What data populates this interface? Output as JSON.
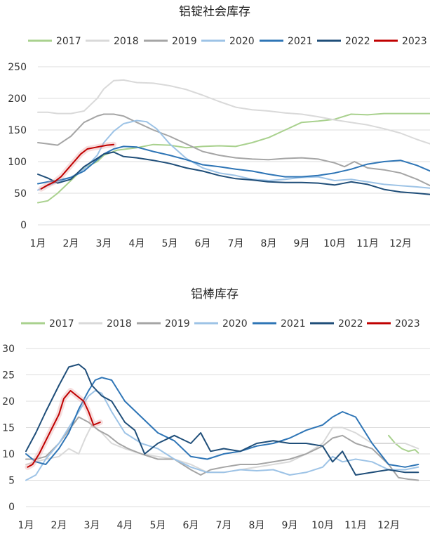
{
  "chart_data": [
    {
      "type": "line",
      "title": "铝锭社会库存",
      "x_tick_labels": [
        "1月",
        "2月",
        "3月",
        "4月",
        "5月",
        "6月",
        "7月",
        "8月",
        "9月",
        "10月",
        "11月",
        "12月"
      ],
      "y_ticks": [
        0,
        50,
        100,
        150,
        200,
        250
      ],
      "ylim": [
        0,
        250
      ],
      "legend_position": "top",
      "grid": true,
      "series": [
        {
          "name": "2017",
          "color": "#a9d18e",
          "x": [
            1.0,
            1.3,
            1.6,
            2.0,
            2.4,
            2.8,
            3.0,
            3.4,
            4.0,
            4.5,
            5.0,
            5.5,
            6.0,
            6.5,
            7.0,
            7.5,
            8.0,
            8.5,
            9.0,
            9.5,
            10.0,
            10.5,
            11.0,
            11.5,
            12.0,
            12.5,
            12.9
          ],
          "y": [
            35,
            38,
            50,
            70,
            90,
            100,
            110,
            118,
            122,
            127,
            126,
            122,
            124,
            125,
            124,
            130,
            138,
            150,
            162,
            164,
            167,
            175,
            174,
            176,
            176,
            176,
            176
          ]
        },
        {
          "name": "2018",
          "color": "#d9d9d9",
          "x": [
            1.0,
            1.3,
            1.6,
            2.0,
            2.4,
            2.8,
            3.0,
            3.3,
            3.6,
            4.0,
            4.5,
            5.0,
            5.5,
            6.0,
            6.5,
            7.0,
            7.5,
            8.0,
            8.5,
            9.0,
            9.5,
            10.0,
            10.5,
            11.0,
            11.5,
            12.0,
            12.5,
            12.9
          ],
          "y": [
            178,
            178,
            176,
            176,
            180,
            200,
            215,
            228,
            229,
            225,
            224,
            220,
            214,
            205,
            195,
            186,
            182,
            180,
            177,
            175,
            171,
            166,
            162,
            158,
            152,
            145,
            135,
            128
          ]
        },
        {
          "name": "2019",
          "color": "#a5a5a5",
          "x": [
            1.0,
            1.3,
            1.6,
            2.0,
            2.4,
            2.8,
            3.0,
            3.3,
            3.6,
            4.0,
            4.5,
            5.0,
            5.5,
            6.0,
            6.5,
            7.0,
            7.5,
            8.0,
            8.5,
            9.0,
            9.5,
            10.0,
            10.3,
            10.6,
            11.0,
            11.5,
            12.0,
            12.5,
            12.9
          ],
          "y": [
            130,
            128,
            126,
            140,
            162,
            172,
            175,
            175,
            172,
            162,
            150,
            140,
            128,
            116,
            110,
            106,
            104,
            103,
            105,
            106,
            104,
            98,
            92,
            100,
            90,
            87,
            82,
            72,
            62
          ]
        },
        {
          "name": "2020",
          "color": "#9dc3e6",
          "x": [
            1.0,
            1.3,
            1.6,
            2.0,
            2.4,
            2.8,
            3.0,
            3.3,
            3.6,
            4.0,
            4.3,
            4.6,
            5.0,
            5.5,
            6.0,
            6.5,
            7.0,
            7.5,
            8.0,
            8.5,
            9.0,
            9.5,
            10.0,
            10.5,
            11.0,
            11.5,
            12.0,
            12.5,
            12.9
          ],
          "y": [
            55,
            62,
            68,
            75,
            88,
            110,
            130,
            148,
            160,
            165,
            163,
            152,
            128,
            105,
            90,
            82,
            78,
            72,
            70,
            72,
            75,
            76,
            70,
            72,
            68,
            64,
            62,
            60,
            58
          ]
        },
        {
          "name": "2021",
          "color": "#2e75b6",
          "x": [
            1.0,
            1.3,
            1.6,
            2.0,
            2.4,
            2.8,
            3.0,
            3.3,
            3.6,
            4.0,
            4.5,
            5.0,
            5.5,
            6.0,
            6.5,
            7.0,
            7.5,
            8.0,
            8.5,
            9.0,
            9.5,
            10.0,
            10.5,
            11.0,
            11.5,
            12.0,
            12.5,
            12.9
          ],
          "y": [
            65,
            68,
            70,
            75,
            85,
            103,
            112,
            120,
            124,
            123,
            116,
            110,
            103,
            95,
            92,
            88,
            85,
            80,
            76,
            76,
            78,
            82,
            88,
            96,
            100,
            102,
            94,
            85
          ]
        },
        {
          "name": "2022",
          "color": "#1f4e79",
          "x": [
            1.0,
            1.3,
            1.6,
            2.0,
            2.4,
            2.8,
            3.0,
            3.3,
            3.6,
            4.0,
            4.5,
            5.0,
            5.5,
            6.0,
            6.5,
            7.0,
            7.5,
            8.0,
            8.5,
            9.0,
            9.5,
            10.0,
            10.5,
            11.0,
            11.5,
            12.0,
            12.5,
            12.9
          ],
          "y": [
            80,
            74,
            66,
            72,
            92,
            105,
            112,
            115,
            108,
            106,
            102,
            97,
            90,
            85,
            78,
            73,
            71,
            68,
            67,
            67,
            66,
            63,
            68,
            64,
            56,
            52,
            50,
            48
          ]
        },
        {
          "name": "2023",
          "color": "#c00000",
          "x": [
            1.1,
            1.3,
            1.5,
            1.7,
            1.9,
            2.1,
            2.3,
            2.5,
            2.7,
            2.9,
            3.1,
            3.3
          ],
          "y": [
            57,
            63,
            68,
            76,
            88,
            100,
            112,
            120,
            122,
            124,
            126,
            127
          ]
        }
      ]
    },
    {
      "type": "line",
      "title": "铝棒库存",
      "x_tick_labels": [
        "1月",
        "2月",
        "3月",
        "4月",
        "5月",
        "6月",
        "7月",
        "8月",
        "9月",
        "10月",
        "11月",
        "12月"
      ],
      "y_ticks": [
        0,
        5,
        10,
        15,
        20,
        25,
        30
      ],
      "ylim": [
        0,
        30
      ],
      "legend_position": "top",
      "grid": true,
      "series": [
        {
          "name": "2017",
          "color": "#a9d18e",
          "x": [
            12.0,
            12.2,
            12.4,
            12.6,
            12.8,
            12.9
          ],
          "y": [
            13.5,
            12.0,
            11.0,
            10.5,
            10.8,
            10.2
          ]
        },
        {
          "name": "2018",
          "color": "#d9d9d9",
          "x": [
            1.0,
            1.3,
            1.6,
            2.0,
            2.3,
            2.6,
            2.8,
            3.0,
            3.3,
            3.6,
            4.0,
            4.5,
            5.0,
            5.5,
            6.0,
            6.5,
            7.0,
            7.5,
            8.0,
            8.5,
            9.0,
            9.5,
            10.0,
            10.3,
            10.6,
            11.0,
            11.5,
            12.0,
            12.5,
            12.9
          ],
          "y": [
            8.0,
            8.5,
            9.0,
            9.5,
            11.0,
            10.0,
            13.0,
            15.5,
            14.0,
            12.0,
            11.0,
            10.0,
            9.5,
            9.0,
            8.0,
            6.5,
            6.5,
            7.0,
            7.5,
            8.0,
            8.5,
            10.0,
            12.0,
            15.0,
            15.0,
            14.0,
            12.0,
            12.0,
            12.0,
            11.0
          ]
        },
        {
          "name": "2019",
          "color": "#a5a5a5",
          "x": [
            1.0,
            1.3,
            1.6,
            2.0,
            2.3,
            2.6,
            2.9,
            3.2,
            3.5,
            3.8,
            4.1,
            4.5,
            5.0,
            5.5,
            6.0,
            6.3,
            6.6,
            7.0,
            7.5,
            8.0,
            8.5,
            9.0,
            9.5,
            10.0,
            10.3,
            10.6,
            11.0,
            11.5,
            12.0,
            12.3,
            12.6,
            12.9
          ],
          "y": [
            9.0,
            9.0,
            9.5,
            12.0,
            14.5,
            17.0,
            16.0,
            14.5,
            13.5,
            12.0,
            11.0,
            10.0,
            9.0,
            9.0,
            7.0,
            6.0,
            7.0,
            7.5,
            8.0,
            8.0,
            8.5,
            9.0,
            10.0,
            11.5,
            13.0,
            13.5,
            12.0,
            11.0,
            8.0,
            5.5,
            5.2,
            5.0
          ]
        },
        {
          "name": "2020",
          "color": "#9dc3e6",
          "x": [
            1.0,
            1.3,
            1.6,
            2.0,
            2.3,
            2.6,
            2.9,
            3.1,
            3.3,
            3.6,
            4.0,
            4.5,
            5.0,
            5.5,
            6.0,
            6.5,
            7.0,
            7.5,
            8.0,
            8.5,
            9.0,
            9.5,
            10.0,
            10.3,
            10.6,
            11.0,
            11.5,
            12.0,
            12.5,
            12.9
          ],
          "y": [
            5.0,
            6.0,
            9.0,
            12.0,
            15.0,
            18.0,
            21.0,
            22.0,
            21.5,
            18.0,
            14.0,
            12.0,
            11.0,
            9.0,
            7.5,
            6.5,
            6.5,
            7.0,
            6.8,
            7.0,
            6.0,
            6.5,
            7.5,
            9.5,
            8.5,
            9.0,
            8.5,
            7.0,
            7.0,
            7.5
          ]
        },
        {
          "name": "2021",
          "color": "#2e75b6",
          "x": [
            1.0,
            1.3,
            1.6,
            2.0,
            2.3,
            2.6,
            2.9,
            3.1,
            3.3,
            3.6,
            4.0,
            4.5,
            5.0,
            5.5,
            6.0,
            6.5,
            7.0,
            7.5,
            8.0,
            8.5,
            9.0,
            9.5,
            10.0,
            10.3,
            10.6,
            11.0,
            11.5,
            12.0,
            12.5,
            12.9
          ],
          "y": [
            10.0,
            8.5,
            8.0,
            11.0,
            14.0,
            18.5,
            22.0,
            24.0,
            24.5,
            24.0,
            20.0,
            17.0,
            14.0,
            12.5,
            9.5,
            9.0,
            10.0,
            10.5,
            11.5,
            12.0,
            13.0,
            14.5,
            15.5,
            17.0,
            18.0,
            17.0,
            12.0,
            8.0,
            7.5,
            8.0
          ]
        },
        {
          "name": "2022",
          "color": "#1f4e79",
          "x": [
            1.0,
            1.3,
            1.6,
            2.0,
            2.3,
            2.6,
            2.8,
            3.0,
            3.3,
            3.6,
            4.0,
            4.3,
            4.6,
            5.0,
            5.5,
            6.0,
            6.3,
            6.6,
            7.0,
            7.5,
            8.0,
            8.5,
            9.0,
            9.5,
            10.0,
            10.3,
            10.6,
            11.0,
            11.5,
            12.0,
            12.5,
            12.9
          ],
          "y": [
            10.5,
            14.0,
            18.0,
            23.0,
            26.5,
            27.0,
            26.0,
            23.0,
            21.0,
            20.0,
            16.0,
            14.5,
            10.0,
            12.0,
            13.5,
            12.0,
            14.0,
            10.5,
            11.0,
            10.5,
            12.0,
            12.5,
            12.0,
            12.0,
            11.5,
            8.5,
            10.5,
            6.0,
            6.5,
            7.0,
            6.5,
            6.5
          ]
        },
        {
          "name": "2023",
          "color": "#c00000",
          "x": [
            1.05,
            1.2,
            1.4,
            1.6,
            1.8,
            2.0,
            2.15,
            2.35,
            2.55,
            2.75,
            2.9,
            3.05,
            3.25
          ],
          "y": [
            7.5,
            8.0,
            10.0,
            12.5,
            15.0,
            17.5,
            20.5,
            22.0,
            21.0,
            20.0,
            18.0,
            15.5,
            16.0
          ]
        }
      ]
    }
  ]
}
